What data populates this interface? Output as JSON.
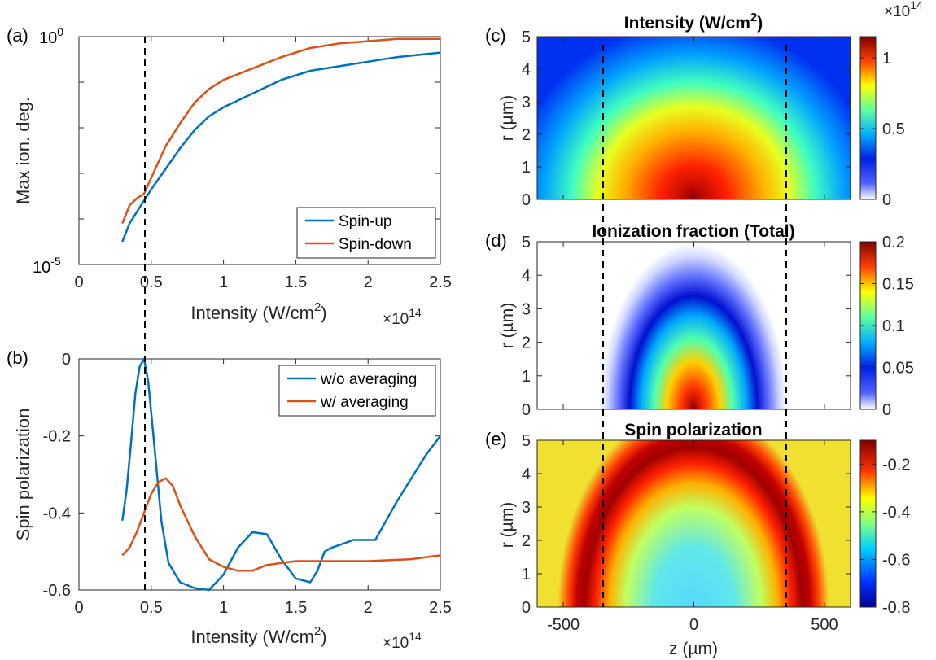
{
  "chart_data": [
    {
      "panel": "(a)",
      "type": "line",
      "title": "",
      "xlabel": "Intensity (W/cm2)",
      "x_exponent": "×10^14",
      "ylabel": "Max ion. deg.",
      "xlim": [
        0,
        2.5
      ],
      "ylim_log10": [
        -5,
        0
      ],
      "y_scale": "log",
      "xticks": [
        "0",
        "0.5",
        "1",
        "1.5",
        "2",
        "2.5"
      ],
      "yticks": [
        "10^-5",
        "10^0"
      ],
      "legend_position": "bottom-right",
      "marker_line_x": 0.45,
      "series": [
        {
          "name": "Spin-up",
          "color": "#0072BD",
          "x": [
            0.3,
            0.35,
            0.4,
            0.45,
            0.5,
            0.6,
            0.7,
            0.8,
            0.9,
            1.0,
            1.2,
            1.4,
            1.6,
            1.8,
            2.0,
            2.2,
            2.5
          ],
          "y": [
            -4.5,
            -4.1,
            -3.85,
            -3.6,
            -3.35,
            -2.9,
            -2.45,
            -2.05,
            -1.75,
            -1.55,
            -1.25,
            -0.95,
            -0.75,
            -0.65,
            -0.55,
            -0.45,
            -0.35
          ]
        },
        {
          "name": "Spin-down",
          "color": "#D95319",
          "x": [
            0.3,
            0.35,
            0.4,
            0.45,
            0.5,
            0.6,
            0.7,
            0.8,
            0.9,
            1.0,
            1.2,
            1.4,
            1.6,
            1.8,
            2.0,
            2.2,
            2.5
          ],
          "y": [
            -4.1,
            -3.7,
            -3.55,
            -3.45,
            -3.1,
            -2.4,
            -1.9,
            -1.45,
            -1.15,
            -0.95,
            -0.7,
            -0.45,
            -0.25,
            -0.15,
            -0.1,
            -0.05,
            -0.05
          ]
        }
      ]
    },
    {
      "panel": "(b)",
      "type": "line",
      "title": "",
      "xlabel": "Intensity (W/cm2)",
      "x_exponent": "×10^14",
      "ylabel": "Spin polarization",
      "xlim": [
        0,
        2.5
      ],
      "ylim": [
        -0.6,
        0
      ],
      "xticks": [
        "0",
        "0.5",
        "1",
        "1.5",
        "2",
        "2.5"
      ],
      "yticks": [
        "0",
        "-0.2",
        "-0.4",
        "-0.6"
      ],
      "legend_position": "top-right",
      "marker_line_x": 0.45,
      "series": [
        {
          "name": "w/o averaging",
          "color": "#0072BD",
          "x": [
            0.3,
            0.33,
            0.36,
            0.39,
            0.42,
            0.45,
            0.48,
            0.52,
            0.57,
            0.62,
            0.7,
            0.8,
            0.9,
            1.0,
            1.1,
            1.2,
            1.3,
            1.4,
            1.5,
            1.6,
            1.65,
            1.7,
            1.75,
            1.9,
            2.05,
            2.2,
            2.4,
            2.5
          ],
          "y": [
            -0.42,
            -0.34,
            -0.22,
            -0.09,
            -0.02,
            0.0,
            -0.06,
            -0.22,
            -0.42,
            -0.53,
            -0.58,
            -0.595,
            -0.6,
            -0.56,
            -0.49,
            -0.45,
            -0.455,
            -0.52,
            -0.57,
            -0.58,
            -0.55,
            -0.5,
            -0.49,
            -0.47,
            -0.47,
            -0.37,
            -0.25,
            -0.2
          ]
        },
        {
          "name": "w/ averaging",
          "color": "#D95319",
          "x": [
            0.3,
            0.35,
            0.4,
            0.45,
            0.5,
            0.55,
            0.6,
            0.65,
            0.7,
            0.8,
            0.9,
            1.0,
            1.1,
            1.2,
            1.3,
            1.4,
            1.5,
            1.7,
            2.0,
            2.3,
            2.5
          ],
          "y": [
            -0.51,
            -0.49,
            -0.45,
            -0.4,
            -0.35,
            -0.32,
            -0.31,
            -0.33,
            -0.38,
            -0.46,
            -0.52,
            -0.54,
            -0.55,
            -0.55,
            -0.535,
            -0.53,
            -0.525,
            -0.525,
            -0.525,
            -0.52,
            -0.51
          ]
        }
      ]
    },
    {
      "panel": "(c)",
      "type": "heatmap",
      "title": "Intensity (W/cm2)",
      "ylabel": "r (µm)",
      "xlim": [
        -600,
        600
      ],
      "ylim": [
        0,
        5
      ],
      "yticks": [
        "0",
        "1",
        "2",
        "3",
        "4",
        "5"
      ],
      "colorbar": {
        "range": [
          0,
          1.15
        ],
        "ticks": [
          "0",
          "0.5",
          "1"
        ],
        "exponent": "×10^14",
        "colormap": "jet-white-low"
      },
      "dashed_lines_z": [
        -340,
        340
      ]
    },
    {
      "panel": "(d)",
      "type": "heatmap",
      "title": "Ionization fraction (Total)",
      "ylabel": "r (µm)",
      "xlim": [
        -600,
        600
      ],
      "ylim": [
        0,
        5
      ],
      "yticks": [
        "0",
        "1",
        "2",
        "3",
        "4",
        "5"
      ],
      "colorbar": {
        "range": [
          0,
          0.2
        ],
        "ticks": [
          "0",
          "0.05",
          "0.1",
          "0.15",
          "0.2"
        ],
        "colormap": "jet-white-low"
      },
      "dashed_lines_z": [
        -340,
        340
      ]
    },
    {
      "panel": "(e)",
      "type": "heatmap",
      "title": "Spin polarization",
      "xlabel": "z (µm)",
      "ylabel": "r (µm)",
      "xlim": [
        -600,
        600
      ],
      "ylim": [
        0,
        5
      ],
      "xticks": [
        "-500",
        "0",
        "500"
      ],
      "yticks": [
        "0",
        "1",
        "2",
        "3",
        "4",
        "5"
      ],
      "colorbar": {
        "range": [
          -0.8,
          -0.1
        ],
        "ticks": [
          "-0.2",
          "-0.4",
          "-0.6",
          "-0.8"
        ],
        "colormap": "jet"
      },
      "dashed_lines_z": [
        -340,
        340
      ]
    }
  ],
  "labels": {
    "a": "(a)",
    "b": "(b)",
    "c": "(c)",
    "d": "(d)",
    "e": "(e)",
    "xlabel_left": "Intensity (W/cm",
    "xlabel_sup": "2",
    "xlabel_close": ")",
    "times": "×10",
    "exp14": "14",
    "title_c": "Intensity (W/cm",
    "title_c_sup": "2",
    "title_c_close": ")",
    "title_d": "Ionization fraction (Total)",
    "title_e": "Spin polarization",
    "rlabel": "r (µm)",
    "zlabel": "z (µm)",
    "ylabel_a": "Max ion. deg.",
    "ylabel_b": "Spin polarization",
    "ytick_a_top": "10",
    "ytick_a_top_exp": "0",
    "ytick_a_bot": "10",
    "ytick_a_bot_exp": "-5"
  }
}
